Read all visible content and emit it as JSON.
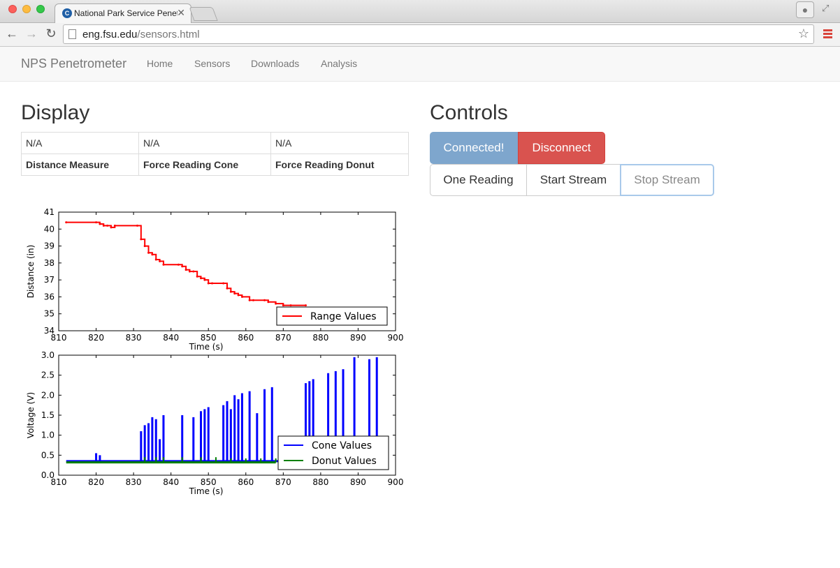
{
  "browser": {
    "tab_title": "National Park Service Penetrometer",
    "tab_favicon": "C",
    "tab_close": "✕",
    "url_host": "eng.fsu.edu",
    "url_path": "/sensors.html"
  },
  "navbar": {
    "brand": "NPS Penetrometer",
    "links": [
      "Home",
      "Sensors",
      "Downloads",
      "Analysis"
    ]
  },
  "display": {
    "title": "Display",
    "values": [
      "N/A",
      "N/A",
      "N/A"
    ],
    "labels": [
      "Distance Measure",
      "Force Reading Cone",
      "Force Reading Donut"
    ]
  },
  "controls": {
    "title": "Controls",
    "connected_label": "Connected!",
    "disconnect_label": "Disconnect",
    "one_reading_label": "One Reading",
    "start_stream_label": "Start Stream",
    "stop_stream_label": "Stop Stream"
  },
  "colors": {
    "range": "#ff0000",
    "cone": "#0000ff",
    "donut": "#008000",
    "connected": "#7ea6cd",
    "disconnect": "#d9534f"
  },
  "chart_data": [
    {
      "type": "line",
      "xlabel": "Time (s)",
      "ylabel": "Distance (in)",
      "xlim": [
        810,
        900
      ],
      "ylim": [
        34,
        41
      ],
      "xticks": [
        810,
        820,
        830,
        840,
        850,
        860,
        870,
        880,
        890,
        900
      ],
      "yticks": [
        34,
        35,
        36,
        37,
        38,
        39,
        40,
        41
      ],
      "legend_position": "lower-right",
      "series": [
        {
          "name": "Range Values",
          "color": "#ff0000",
          "x": [
            812,
            820,
            821,
            822,
            823,
            824,
            825,
            831,
            832,
            833,
            834,
            835,
            836,
            837,
            838,
            842,
            843,
            844,
            845,
            846,
            847,
            848,
            849,
            850,
            851,
            854,
            855,
            856,
            857,
            858,
            859,
            861,
            862,
            865,
            866,
            868,
            870,
            872,
            876
          ],
          "y": [
            40.4,
            40.4,
            40.3,
            40.2,
            40.2,
            40.1,
            40.2,
            40.2,
            39.4,
            39.0,
            38.6,
            38.5,
            38.2,
            38.1,
            37.9,
            37.9,
            37.8,
            37.6,
            37.5,
            37.5,
            37.2,
            37.1,
            37.0,
            36.8,
            36.8,
            36.8,
            36.5,
            36.3,
            36.2,
            36.1,
            36.0,
            35.8,
            35.8,
            35.8,
            35.7,
            35.6,
            35.5,
            35.5,
            35.5
          ]
        }
      ]
    },
    {
      "type": "line",
      "xlabel": "Time (s)",
      "ylabel": "Voltage (V)",
      "xlim": [
        810,
        900
      ],
      "ylim": [
        0.0,
        3.0
      ],
      "xticks": [
        810,
        820,
        830,
        840,
        850,
        860,
        870,
        880,
        890,
        900
      ],
      "yticks": [
        0.0,
        0.5,
        1.0,
        1.5,
        2.0,
        2.5,
        3.0
      ],
      "legend_position": "lower-right",
      "baseline_cone": 0.35,
      "baseline_donut": 0.32,
      "series": [
        {
          "name": "Cone Values",
          "color": "#0000ff",
          "spikes_x": [
            820,
            821,
            832,
            833,
            834,
            835,
            836,
            837,
            838,
            843,
            846,
            848,
            849,
            850,
            854,
            855,
            856,
            857,
            858,
            859,
            861,
            863,
            865,
            867,
            876,
            877,
            878,
            882,
            884,
            886,
            889,
            893,
            895
          ],
          "spikes_y": [
            0.55,
            0.5,
            1.1,
            1.25,
            1.3,
            1.45,
            1.4,
            0.9,
            1.5,
            1.5,
            1.45,
            1.6,
            1.65,
            1.7,
            1.75,
            1.85,
            1.65,
            2.0,
            1.9,
            2.05,
            2.1,
            1.55,
            2.15,
            2.2,
            2.3,
            2.35,
            2.4,
            2.55,
            2.6,
            2.65,
            2.95,
            2.9,
            2.95
          ]
        },
        {
          "name": "Donut Values",
          "color": "#008000",
          "spikes_x": [
            833,
            836,
            838,
            843,
            848,
            852,
            856,
            860,
            864,
            868
          ],
          "spikes_y": [
            0.45,
            0.45,
            0.45,
            0.45,
            0.45,
            0.45,
            0.42,
            0.42,
            0.42,
            0.42
          ]
        }
      ]
    }
  ]
}
